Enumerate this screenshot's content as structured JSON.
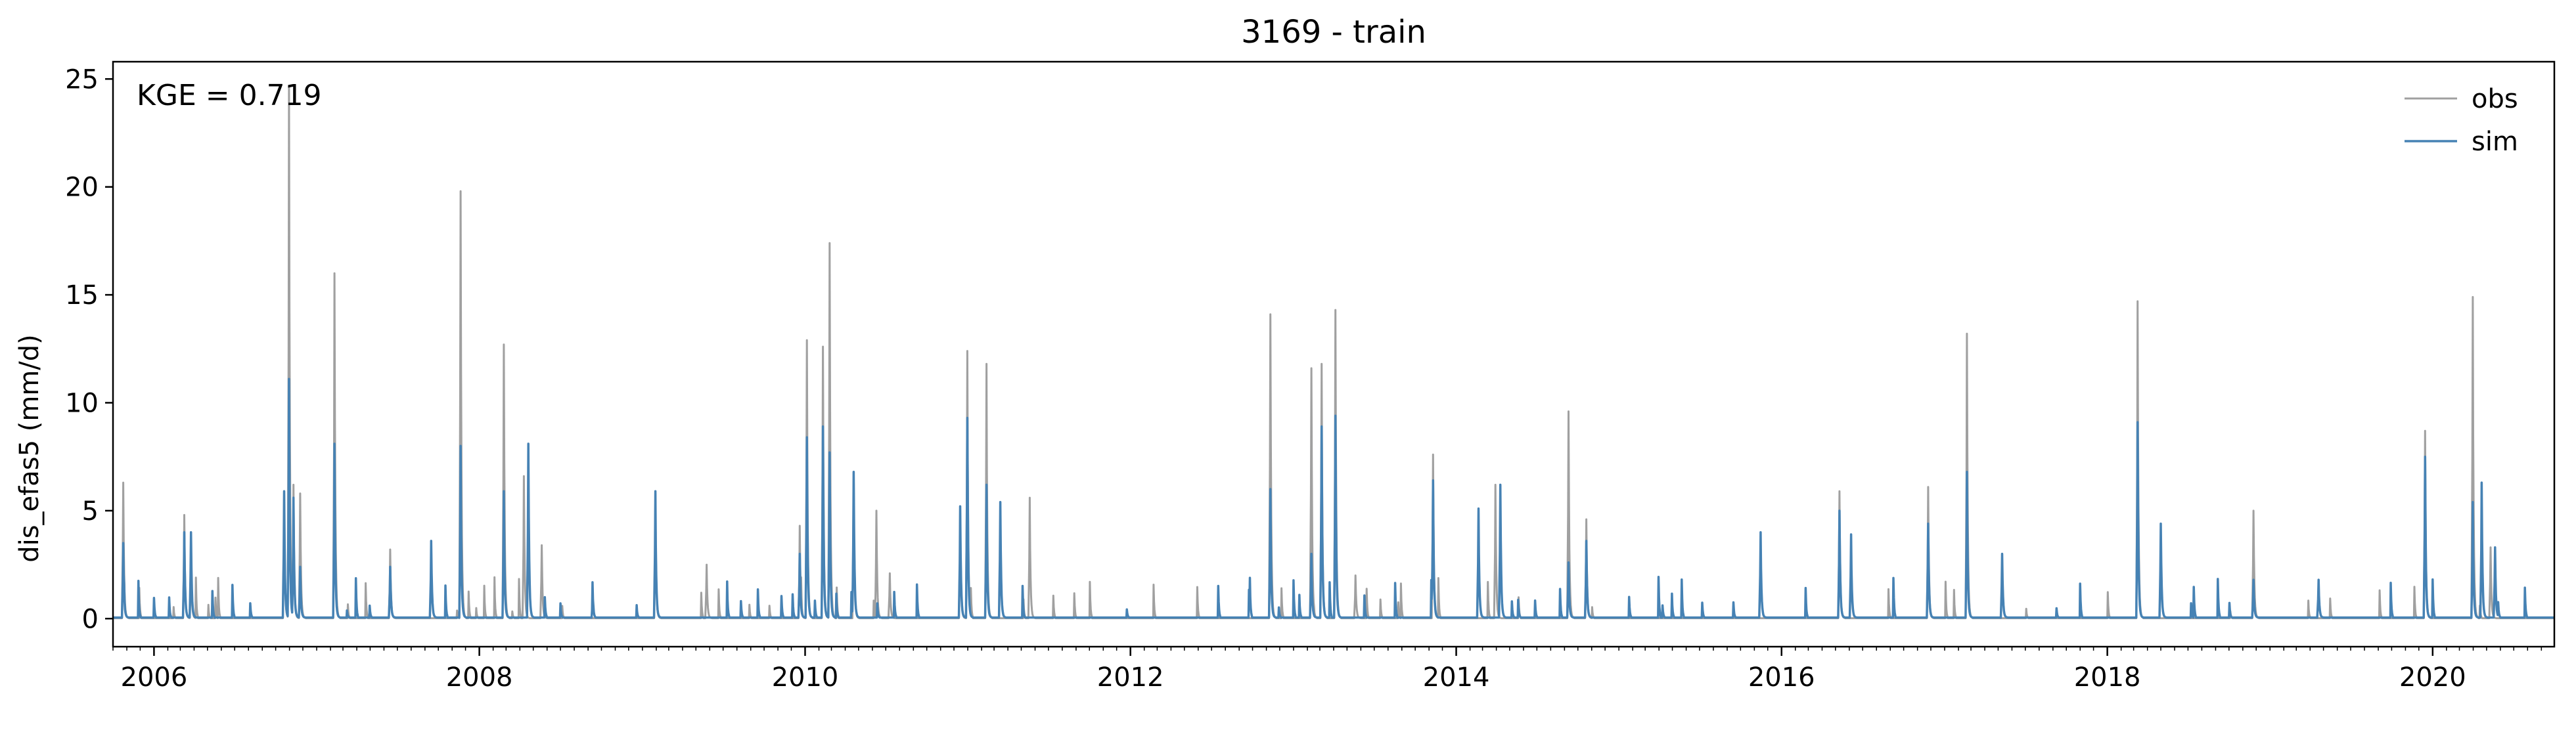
{
  "chart_data": {
    "type": "line",
    "title": "3169 - train",
    "xlabel": "",
    "ylabel": "dis_efas5 (mm/d)",
    "annotation": "KGE = 0.719",
    "x_range": [
      "2005-10-01",
      "2020-09-30"
    ],
    "x_ticks": [
      "2006",
      "2008",
      "2010",
      "2012",
      "2014",
      "2016",
      "2018",
      "2020"
    ],
    "ylim": [
      -1.3,
      25.8
    ],
    "y_ticks": [
      0,
      5,
      10,
      15,
      20,
      25
    ],
    "grid": false,
    "legend": {
      "placement": "top-right",
      "entries": [
        "obs",
        "sim"
      ]
    },
    "colors": {
      "obs": "#a0a0a0",
      "sim": "#4682b4"
    },
    "series": [
      {
        "name": "obs",
        "peaks": [
          [
            "2005-10-24",
            6.3
          ],
          [
            "2006-03-10",
            4.8
          ],
          [
            "2006-03-25",
            3.0
          ],
          [
            "2006-10-20",
            5.8
          ],
          [
            "2006-10-31",
            24.6
          ],
          [
            "2006-11-10",
            6.2
          ],
          [
            "2006-11-25",
            5.8
          ],
          [
            "2007-02-10",
            16.0
          ],
          [
            "2007-06-15",
            3.2
          ],
          [
            "2007-11-20",
            19.8
          ],
          [
            "2008-02-25",
            12.7
          ],
          [
            "2008-04-10",
            6.6
          ],
          [
            "2008-05-20",
            3.4
          ],
          [
            "2009-01-30",
            5.8
          ],
          [
            "2009-05-25",
            2.5
          ],
          [
            "2009-12-20",
            4.3
          ],
          [
            "2010-01-05",
            12.9
          ],
          [
            "2010-02-10",
            12.6
          ],
          [
            "2010-02-25",
            17.4
          ],
          [
            "2010-04-20",
            6.8
          ],
          [
            "2010-06-10",
            5.0
          ],
          [
            "2010-07-10",
            2.1
          ],
          [
            "2010-12-15",
            5.2
          ],
          [
            "2010-12-31",
            12.4
          ],
          [
            "2011-02-12",
            11.8
          ],
          [
            "2011-05-20",
            5.6
          ],
          [
            "2012-11-10",
            14.1
          ],
          [
            "2013-02-10",
            11.6
          ],
          [
            "2013-03-05",
            11.8
          ],
          [
            "2013-04-05",
            14.3
          ],
          [
            "2013-05-20",
            2.0
          ],
          [
            "2013-11-10",
            7.6
          ],
          [
            "2014-03-30",
            6.2
          ],
          [
            "2014-09-10",
            9.6
          ],
          [
            "2014-10-20",
            4.6
          ],
          [
            "2016-05-10",
            5.9
          ],
          [
            "2016-11-25",
            6.1
          ],
          [
            "2017-02-20",
            13.2
          ],
          [
            "2018-03-10",
            14.7
          ],
          [
            "2018-11-25",
            5.0
          ],
          [
            "2019-12-15",
            8.7
          ],
          [
            "2020-03-31",
            14.9
          ],
          [
            "2020-05-10",
            3.3
          ]
        ]
      },
      {
        "name": "sim",
        "peaks": [
          [
            "2005-10-24",
            3.5
          ],
          [
            "2006-03-10",
            4.0
          ],
          [
            "2006-03-25",
            4.0
          ],
          [
            "2006-10-20",
            5.9
          ],
          [
            "2006-10-31",
            11.1
          ],
          [
            "2006-11-10",
            5.6
          ],
          [
            "2006-11-25",
            2.4
          ],
          [
            "2007-02-10",
            8.1
          ],
          [
            "2007-06-15",
            2.4
          ],
          [
            "2007-09-15",
            3.6
          ],
          [
            "2007-11-20",
            8.0
          ],
          [
            "2008-02-25",
            5.9
          ],
          [
            "2008-04-20",
            8.1
          ],
          [
            "2009-01-30",
            5.9
          ],
          [
            "2009-12-20",
            3.0
          ],
          [
            "2010-01-05",
            8.4
          ],
          [
            "2010-02-10",
            8.9
          ],
          [
            "2010-02-25",
            7.7
          ],
          [
            "2010-04-20",
            6.8
          ],
          [
            "2010-12-15",
            5.2
          ],
          [
            "2010-12-31",
            9.3
          ],
          [
            "2011-02-12",
            6.2
          ],
          [
            "2011-03-15",
            5.4
          ],
          [
            "2012-11-10",
            6.0
          ],
          [
            "2013-02-10",
            3.0
          ],
          [
            "2013-03-05",
            8.9
          ],
          [
            "2013-04-05",
            9.4
          ],
          [
            "2013-11-10",
            6.4
          ],
          [
            "2014-02-20",
            5.1
          ],
          [
            "2014-04-10",
            6.2
          ],
          [
            "2014-09-10",
            2.6
          ],
          [
            "2014-10-20",
            3.6
          ],
          [
            "2015-11-15",
            4.0
          ],
          [
            "2016-05-10",
            5.0
          ],
          [
            "2016-06-05",
            3.9
          ],
          [
            "2016-11-25",
            4.4
          ],
          [
            "2017-02-20",
            6.8
          ],
          [
            "2017-05-10",
            3.0
          ],
          [
            "2018-03-10",
            9.1
          ],
          [
            "2018-05-01",
            4.4
          ],
          [
            "2018-11-25",
            1.8
          ],
          [
            "2019-04-20",
            1.8
          ],
          [
            "2019-12-15",
            7.5
          ],
          [
            "2020-03-31",
            5.4
          ],
          [
            "2020-04-20",
            6.3
          ],
          [
            "2020-05-20",
            3.3
          ]
        ]
      }
    ]
  }
}
